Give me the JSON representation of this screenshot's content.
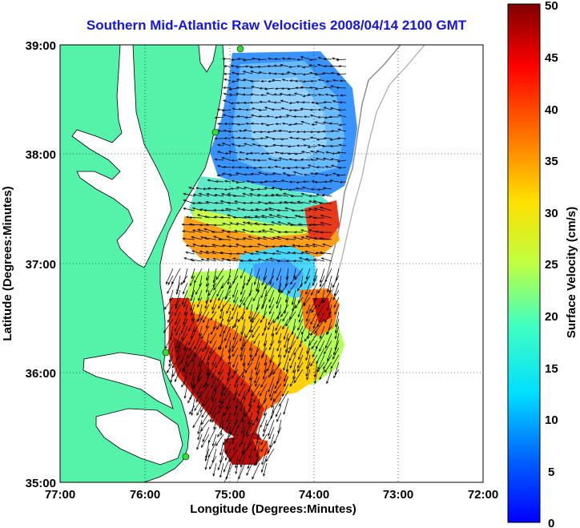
{
  "title": "Southern Mid-Atlantic Raw Velocities 2008/04/14 2100 GMT",
  "axes": {
    "xlabel": "Longitude (Degrees:Minutes)",
    "ylabel": "Latitude (Degrees:Minutes)",
    "x_ticks": [
      "77:00",
      "76:00",
      "75:00",
      "74:00",
      "73:00",
      "72:00"
    ],
    "y_ticks": [
      "39:00",
      "38:00",
      "37:00",
      "36:00",
      "35:00"
    ],
    "xlim": [
      -77,
      -72
    ],
    "ylim": [
      35,
      39
    ],
    "grid": true
  },
  "colorbar": {
    "label": "Surface Velocity (cm/s)",
    "ticks": [
      "50",
      "45",
      "40",
      "35",
      "30",
      "25",
      "20",
      "15",
      "10",
      "5",
      "0"
    ],
    "range": [
      0,
      50
    ],
    "colormap": "jet"
  },
  "colors": {
    "land": "#55f2aa",
    "water": "#ffffff",
    "title": "#1414e6",
    "station": "#33dd33"
  }
}
